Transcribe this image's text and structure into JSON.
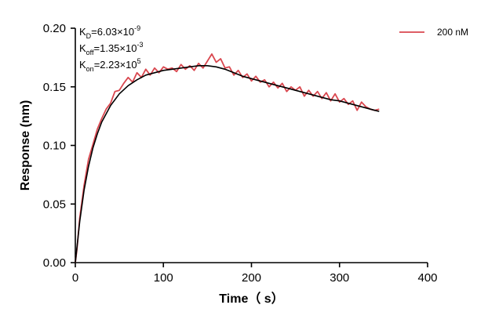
{
  "chart_data": {
    "type": "line",
    "title": "",
    "xlabel": "Time（ s）",
    "ylabel": "Response (nm)",
    "xlim": [
      0,
      400
    ],
    "ylim": [
      0,
      0.2
    ],
    "x_ticks": [
      "0",
      "100",
      "200",
      "300",
      "400"
    ],
    "y_ticks": [
      "0.00",
      "0.05",
      "0.10",
      "0.15",
      "0.20"
    ],
    "grid": false,
    "legend_placement": "top-right",
    "annotations": [
      {
        "main": "K",
        "sub": "D",
        "eq": "=6.03×10",
        "sup": "-9"
      },
      {
        "main": "K",
        "sub": "off",
        "eq": "=1.35×10",
        "sup": "-3"
      },
      {
        "main": "K",
        "sub": "on",
        "eq": "=2.23×10",
        "sup": "5"
      }
    ],
    "series": [
      {
        "name": "200 nM",
        "color": "#d9474f",
        "style": "noisy-measured",
        "x": [
          0,
          2,
          5,
          10,
          15,
          20,
          25,
          30,
          35,
          40,
          45,
          50,
          55,
          60,
          65,
          70,
          75,
          80,
          85,
          90,
          95,
          100,
          105,
          110,
          115,
          120,
          125,
          130,
          135,
          140,
          145,
          150,
          155,
          160,
          165,
          170,
          175,
          180,
          185,
          190,
          195,
          200,
          205,
          210,
          215,
          220,
          225,
          230,
          235,
          240,
          245,
          250,
          255,
          260,
          265,
          270,
          275,
          280,
          285,
          290,
          295,
          300,
          305,
          310,
          315,
          320,
          325,
          330,
          335,
          340,
          345
        ],
        "values": [
          0.0,
          0.012,
          0.038,
          0.066,
          0.088,
          0.101,
          0.114,
          0.123,
          0.131,
          0.136,
          0.146,
          0.147,
          0.153,
          0.158,
          0.154,
          0.162,
          0.158,
          0.165,
          0.16,
          0.166,
          0.162,
          0.167,
          0.165,
          0.166,
          0.163,
          0.169,
          0.165,
          0.168,
          0.164,
          0.17,
          0.166,
          0.172,
          0.178,
          0.171,
          0.174,
          0.166,
          0.167,
          0.16,
          0.164,
          0.158,
          0.161,
          0.155,
          0.159,
          0.154,
          0.156,
          0.15,
          0.154,
          0.149,
          0.153,
          0.146,
          0.15,
          0.147,
          0.15,
          0.142,
          0.147,
          0.142,
          0.146,
          0.14,
          0.145,
          0.138,
          0.144,
          0.137,
          0.14,
          0.135,
          0.138,
          0.13,
          0.137,
          0.133,
          0.131,
          0.13,
          0.131
        ]
      },
      {
        "name": "",
        "color": "#000000",
        "style": "fit",
        "x": [
          0,
          5,
          10,
          15,
          20,
          25,
          30,
          40,
          50,
          60,
          70,
          80,
          90,
          100,
          110,
          120,
          130,
          140,
          150,
          160,
          170,
          180,
          190,
          200,
          210,
          220,
          230,
          240,
          250,
          260,
          270,
          280,
          290,
          300,
          310,
          320,
          330,
          340,
          345
        ],
        "values": [
          0.0,
          0.035,
          0.062,
          0.082,
          0.098,
          0.11,
          0.12,
          0.134,
          0.144,
          0.151,
          0.156,
          0.16,
          0.162,
          0.164,
          0.165,
          0.166,
          0.167,
          0.168,
          0.168,
          0.167,
          0.165,
          0.162,
          0.159,
          0.157,
          0.155,
          0.153,
          0.151,
          0.149,
          0.147,
          0.145,
          0.143,
          0.141,
          0.139,
          0.138,
          0.136,
          0.134,
          0.132,
          0.13,
          0.129
        ]
      }
    ]
  }
}
